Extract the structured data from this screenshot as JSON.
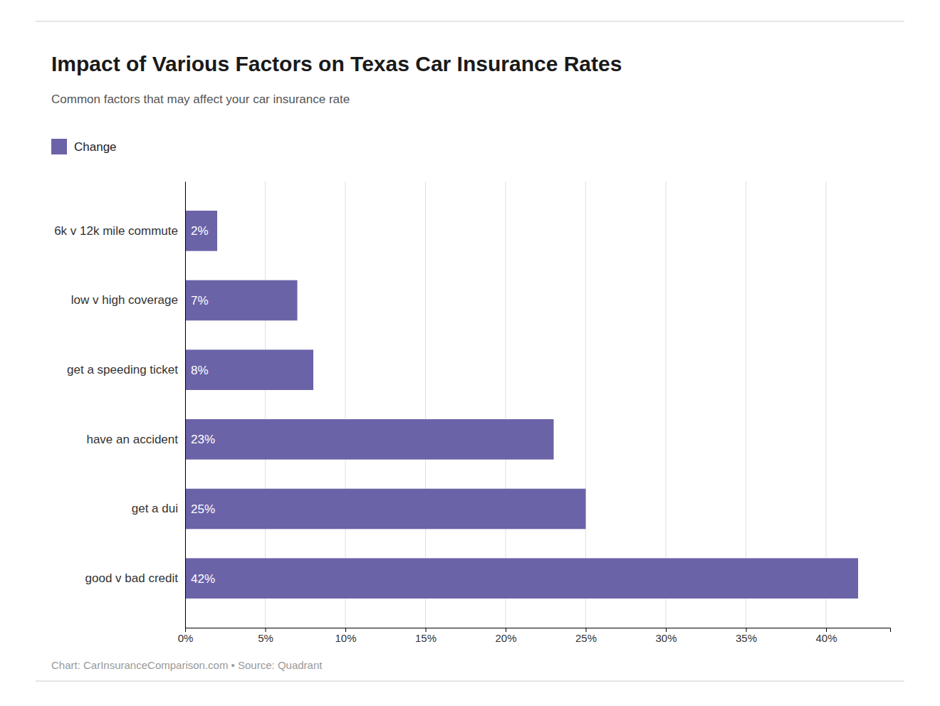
{
  "chart_data": {
    "type": "bar",
    "orientation": "horizontal",
    "title": "Impact of Various Factors on Texas Car Insurance Rates",
    "subtitle": "Common factors that may affect your car insurance rate",
    "caption": "Chart: CarInsuranceComparison.com • Source: Quadrant",
    "categories": [
      "6k v 12k mile commute",
      "low v high coverage",
      "get a speeding ticket",
      "have an accident",
      "get a dui",
      "good v bad credit"
    ],
    "series": [
      {
        "name": "Change",
        "color": "#6b63a8",
        "values": [
          2,
          7,
          8,
          23,
          25,
          42
        ],
        "value_labels": [
          "2%",
          "7%",
          "8%",
          "23%",
          "25%",
          "42%"
        ]
      }
    ],
    "xlim": [
      0,
      44
    ],
    "xticks": [
      {
        "value": 0,
        "label": "0%"
      },
      {
        "value": 5,
        "label": "5%"
      },
      {
        "value": 10,
        "label": "10%"
      },
      {
        "value": 15,
        "label": "15%"
      },
      {
        "value": 20,
        "label": "20%"
      },
      {
        "value": 25,
        "label": "25%"
      },
      {
        "value": 30,
        "label": "30%"
      },
      {
        "value": 35,
        "label": "35%"
      },
      {
        "value": 40,
        "label": "40%"
      }
    ],
    "grid": true,
    "legend": "top-left",
    "data_labels": true
  }
}
